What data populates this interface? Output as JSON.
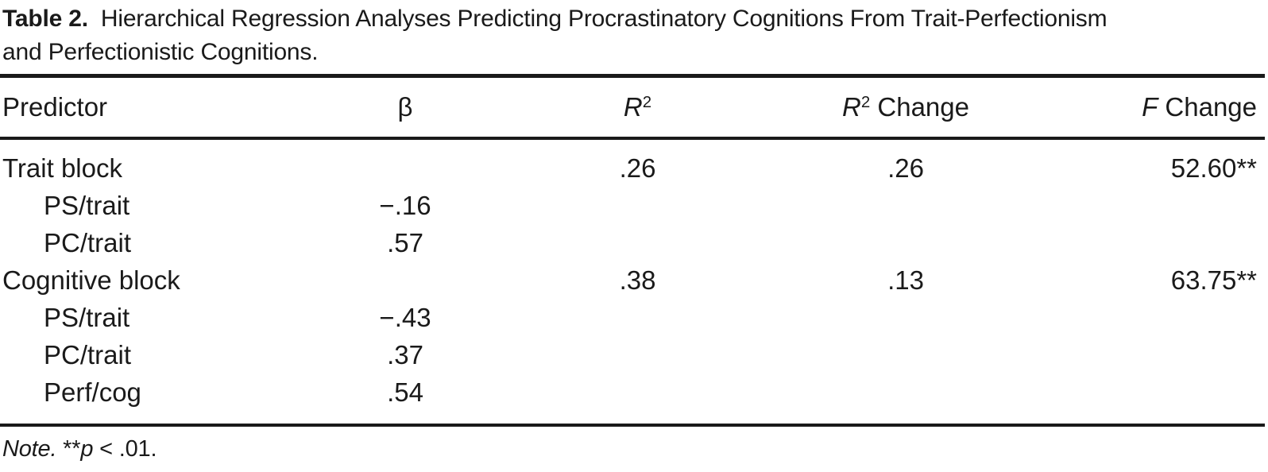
{
  "page": {
    "background_color": "#ffffff",
    "text_color": "#1a1a1a"
  },
  "title": {
    "label": "Table 2.",
    "line1_rest": "Hierarchical Regression Analyses Predicting Procrastinatory Cognitions From Trait-Perfectionism",
    "line2": "and Perfectionistic Cognitions."
  },
  "table": {
    "header": {
      "predictor": "Predictor",
      "beta": "β",
      "r2_italic": "R",
      "r2_sup": "2",
      "r2_change_italic": "R",
      "r2_change_sup": "2",
      "r2_change_rest": " Change",
      "f_change_italic": "F",
      "f_change_rest": " Change"
    },
    "rows": [
      {
        "predictor": "Trait block",
        "indent": false,
        "beta": "",
        "r2": ".26",
        "r2_change": ".26",
        "f_change": "52.60**"
      },
      {
        "predictor": "PS/trait",
        "indent": true,
        "beta": "−.16",
        "r2": "",
        "r2_change": "",
        "f_change": ""
      },
      {
        "predictor": "PC/trait",
        "indent": true,
        "beta": ".57",
        "r2": "",
        "r2_change": "",
        "f_change": ""
      },
      {
        "predictor": "Cognitive block",
        "indent": false,
        "beta": "",
        "r2": ".38",
        "r2_change": ".13",
        "f_change": "63.75**"
      },
      {
        "predictor": "PS/trait",
        "indent": true,
        "beta": "−.43",
        "r2": "",
        "r2_change": "",
        "f_change": ""
      },
      {
        "predictor": "PC/trait",
        "indent": true,
        "beta": ".37",
        "r2": "",
        "r2_change": "",
        "f_change": ""
      },
      {
        "predictor": "Perf/cog",
        "indent": true,
        "beta": ".54",
        "r2": "",
        "r2_change": "",
        "f_change": ""
      }
    ]
  },
  "note": {
    "label": "Note.",
    "sig": " **",
    "p_symbol": "p",
    "tail": " < .01."
  }
}
